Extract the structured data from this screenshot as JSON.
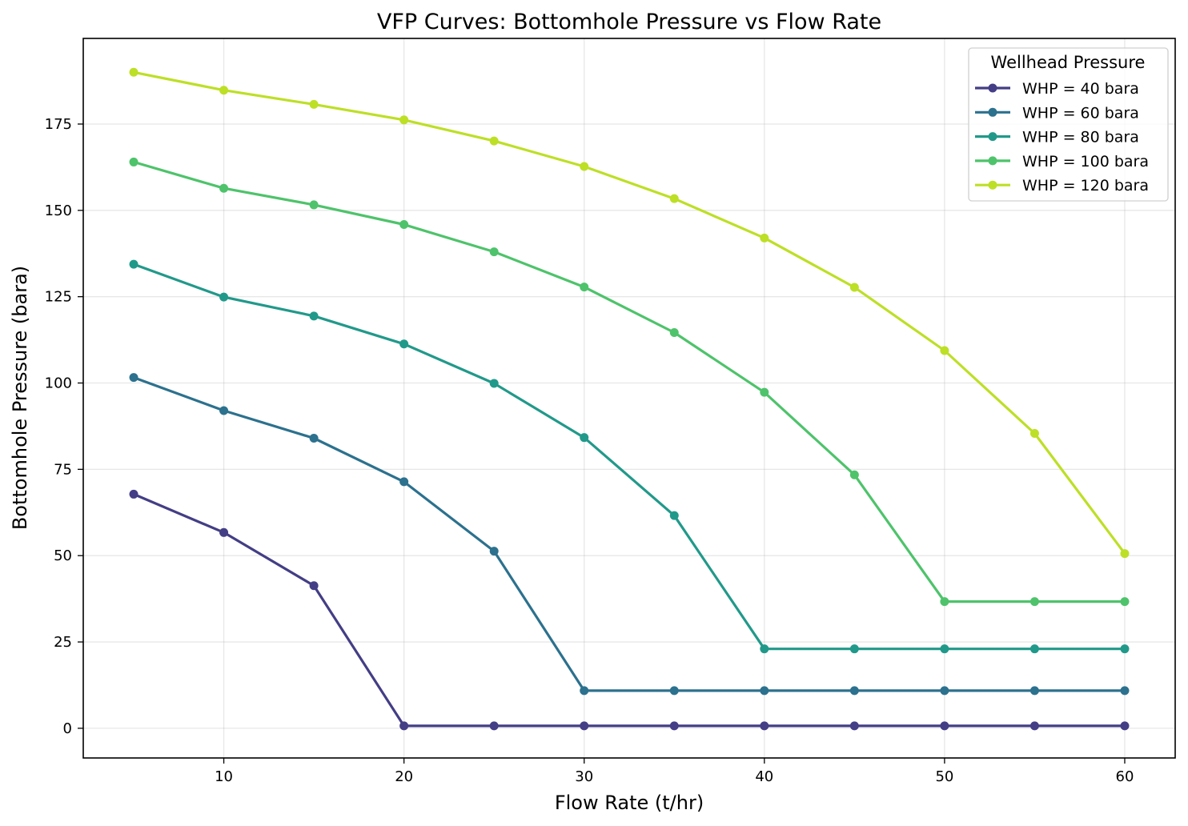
{
  "chart_data": {
    "type": "line",
    "title": "VFP Curves: Bottomhole Pressure vs Flow Rate",
    "xlabel": "Flow Rate (t/hr)",
    "ylabel": "Bottomhole Pressure (bara)",
    "xlim": [
      2.2,
      62.8
    ],
    "ylim": [
      -8.6,
      199.8
    ],
    "xticks": [
      10,
      20,
      30,
      40,
      50,
      60
    ],
    "yticks": [
      0,
      25,
      50,
      75,
      100,
      125,
      150,
      175
    ],
    "grid": true,
    "legend": {
      "title": "Wellhead Pressure",
      "placement": "top-right"
    },
    "x": [
      5,
      10,
      15,
      20,
      25,
      30,
      35,
      40,
      45,
      50,
      55,
      60
    ],
    "series": [
      {
        "name": "WHP = 40 bara",
        "color": "#433e85",
        "values": [
          67.8,
          56.7,
          41.3,
          0.7,
          0.7,
          0.7,
          0.7,
          0.7,
          0.7,
          0.7,
          0.7,
          0.7
        ]
      },
      {
        "name": "WHP = 60 bara",
        "color": "#2c718e",
        "values": [
          101.6,
          92.0,
          84.0,
          71.4,
          51.3,
          10.9,
          10.9,
          10.9,
          10.9,
          10.9,
          10.9,
          10.9
        ]
      },
      {
        "name": "WHP = 80 bara",
        "color": "#21998a",
        "values": [
          134.4,
          124.9,
          119.4,
          111.3,
          99.9,
          84.2,
          61.6,
          23.0,
          23.0,
          23.0,
          23.0,
          23.0
        ]
      },
      {
        "name": "WHP = 100 bara",
        "color": "#4ec36b",
        "values": [
          164.0,
          156.4,
          151.6,
          145.9,
          138.0,
          127.8,
          114.6,
          97.3,
          73.4,
          36.7,
          36.7,
          36.7
        ]
      },
      {
        "name": "WHP = 120 bara",
        "color": "#bddf26",
        "values": [
          190.0,
          184.8,
          180.7,
          176.2,
          170.1,
          162.7,
          153.4,
          142.0,
          127.7,
          109.4,
          85.4,
          50.6
        ]
      }
    ]
  }
}
